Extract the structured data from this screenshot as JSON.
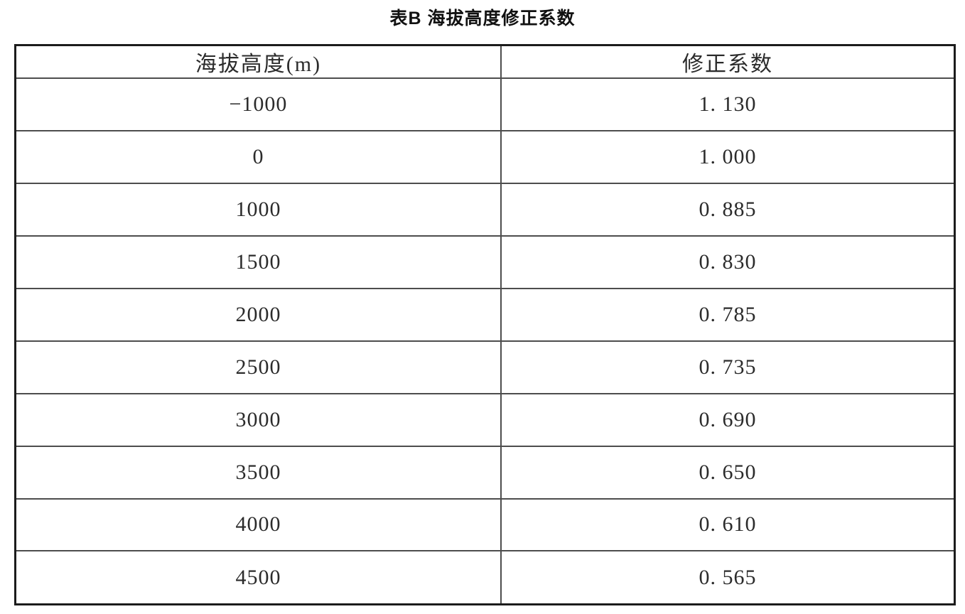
{
  "title": "表B 海拔高度修正系数",
  "table": {
    "headers": [
      "海拔高度(m)",
      "修正系数"
    ],
    "rows": [
      {
        "altitude": "−1000",
        "coefficient": "1. 130"
      },
      {
        "altitude": "0",
        "coefficient": "1. 000"
      },
      {
        "altitude": "1000",
        "coefficient": "0. 885"
      },
      {
        "altitude": "1500",
        "coefficient": "0. 830"
      },
      {
        "altitude": "2000",
        "coefficient": "0. 785"
      },
      {
        "altitude": "2500",
        "coefficient": "0. 735"
      },
      {
        "altitude": "3000",
        "coefficient": "0. 690"
      },
      {
        "altitude": "3500",
        "coefficient": "0. 650"
      },
      {
        "altitude": "4000",
        "coefficient": "0. 610"
      },
      {
        "altitude": "4500",
        "coefficient": "0. 565"
      }
    ]
  },
  "colors": {
    "background": "#ffffff",
    "title_text": "#111111",
    "cell_text": "#2b2b2b",
    "outer_border": "#1c1c1c",
    "inner_border": "#4d4d4d"
  }
}
